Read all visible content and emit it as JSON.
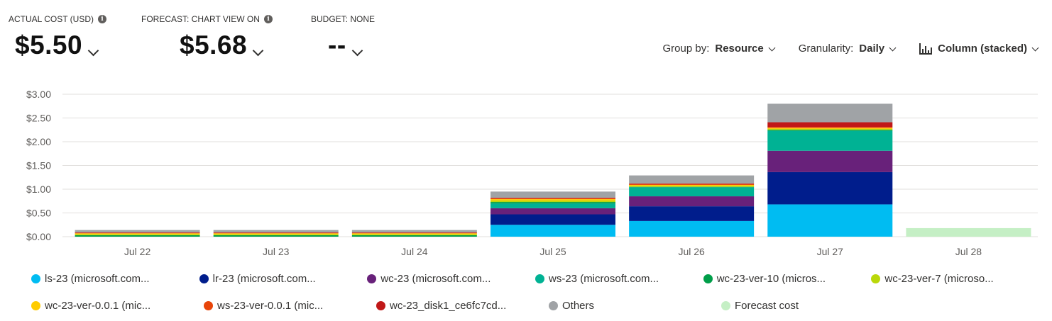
{
  "kpis": {
    "actual": {
      "label": "ACTUAL COST (USD)",
      "value": "$5.50"
    },
    "forecast": {
      "label": "FORECAST: CHART VIEW ON",
      "value": "$5.68"
    },
    "budget": {
      "label": "BUDGET: NONE",
      "value": "--"
    }
  },
  "controls": {
    "group_prefix": "Group by:",
    "group_value": "Resource",
    "gran_prefix": "Granularity:",
    "gran_value": "Daily",
    "view_value": "Column (stacked)",
    "icons": {
      "info": "info-icon",
      "chevron": "chevron-down-icon",
      "column": "column-chart-icon"
    }
  },
  "chart_data": {
    "type": "bar",
    "stacked": true,
    "categories": [
      "Jul 22",
      "Jul 23",
      "Jul 24",
      "Jul 25",
      "Jul 26",
      "Jul 27",
      "Jul 28"
    ],
    "yticks": [
      "$0.00",
      "$0.50",
      "$1.00",
      "$1.50",
      "$2.00",
      "$2.50",
      "$3.00"
    ],
    "ylim": [
      0,
      3
    ],
    "grid": true,
    "legend_placement": "bottom",
    "series": [
      {
        "name": "ls-23 (microsoft.com...",
        "color": "#00bcf2",
        "values": [
          0,
          0,
          0,
          0.25,
          0.33,
          0.68,
          0
        ]
      },
      {
        "name": "lr-23 (microsoft.com...",
        "color": "#001d8c",
        "values": [
          0,
          0,
          0,
          0.22,
          0.31,
          0.68,
          0
        ]
      },
      {
        "name": "wc-23 (microsoft.com...",
        "color": "#68217a",
        "values": [
          0,
          0,
          0,
          0.13,
          0.21,
          0.45,
          0
        ]
      },
      {
        "name": "ws-23 (microsoft.com...",
        "color": "#00b294",
        "values": [
          0,
          0,
          0,
          0.1,
          0.19,
          0.42,
          0
        ]
      },
      {
        "name": "wc-23-ver-10 (micros...",
        "color": "#009e49",
        "values": [
          0.03,
          0.03,
          0.03,
          0.03,
          0.01,
          0.02,
          0
        ]
      },
      {
        "name": "wc-23-ver-7 (microso...",
        "color": "#bad80a",
        "values": [
          0.02,
          0.02,
          0.02,
          0.03,
          0.02,
          0.02,
          0
        ]
      },
      {
        "name": "wc-23-ver-0.0.1 (mic...",
        "color": "#ffcc00",
        "values": [
          0.02,
          0.02,
          0.02,
          0.03,
          0.02,
          0.02,
          0
        ]
      },
      {
        "name": "ws-23-ver-0.0.1 (mic...",
        "color": "#e8450a",
        "values": [
          0.01,
          0.01,
          0.01,
          0.02,
          0.02,
          0.02,
          0
        ]
      },
      {
        "name": "wc-23_disk1_ce6fc7cd...",
        "color": "#c01818",
        "values": [
          0.01,
          0.01,
          0.01,
          0.01,
          0.01,
          0.1,
          0
        ]
      },
      {
        "name": "Others",
        "color": "#a0a3a6",
        "values": [
          0.05,
          0.05,
          0.05,
          0.13,
          0.17,
          0.39,
          0
        ]
      },
      {
        "name": "Forecast cost",
        "color": "#c5efc5",
        "values": [
          0,
          0,
          0,
          0,
          0,
          0,
          0.18
        ]
      }
    ]
  }
}
